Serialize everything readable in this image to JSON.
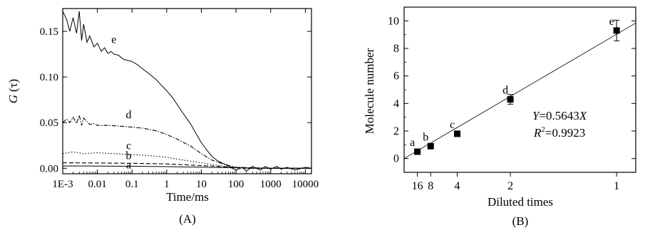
{
  "chart_data": [
    {
      "type": "line",
      "panel_label": "(A)",
      "xlabel": "Time/ms",
      "ylabel_main": "G",
      "ylabel_arg": "(τ)",
      "x_scale": "log",
      "xlim": [
        0.001,
        15000
      ],
      "ylim": [
        -0.006,
        0.175
      ],
      "x_ticks": [
        {
          "v": 0.001,
          "label": "1E-3"
        },
        {
          "v": 0.01,
          "label": "0.01"
        },
        {
          "v": 0.1,
          "label": "0.1"
        },
        {
          "v": 1,
          "label": "1"
        },
        {
          "v": 10,
          "label": "10"
        },
        {
          "v": 100,
          "label": "100"
        },
        {
          "v": 1000,
          "label": "1000"
        },
        {
          "v": 10000,
          "label": "10000"
        }
      ],
      "y_ticks": [
        {
          "v": 0.0,
          "label": "0.00"
        },
        {
          "v": 0.05,
          "label": "0.05"
        },
        {
          "v": 0.1,
          "label": "0.10"
        },
        {
          "v": 0.15,
          "label": "0.15"
        }
      ],
      "series": [
        {
          "name": "e",
          "style": "solid",
          "label_at": [
            0.03,
            0.137
          ],
          "x": [
            0.001,
            0.0013,
            0.0016,
            0.002,
            0.0025,
            0.003,
            0.0035,
            0.004,
            0.005,
            0.006,
            0.008,
            0.01,
            0.013,
            0.016,
            0.02,
            0.025,
            0.03,
            0.04,
            0.05,
            0.06,
            0.08,
            0.1,
            0.15,
            0.2,
            0.3,
            0.5,
            0.7,
            1,
            1.5,
            2,
            3,
            5,
            7,
            10,
            15,
            20,
            30,
            50,
            70,
            100,
            150,
            200,
            300,
            500,
            700,
            1000,
            1500,
            2000,
            3000,
            5000,
            10000,
            15000
          ],
          "y": [
            0.172,
            0.163,
            0.15,
            0.165,
            0.148,
            0.172,
            0.14,
            0.158,
            0.138,
            0.145,
            0.133,
            0.137,
            0.128,
            0.132,
            0.126,
            0.128,
            0.125,
            0.124,
            0.121,
            0.119,
            0.118,
            0.117,
            0.113,
            0.109,
            0.104,
            0.097,
            0.091,
            0.085,
            0.077,
            0.07,
            0.06,
            0.048,
            0.038,
            0.028,
            0.019,
            0.013,
            0.008,
            0.004,
            0.001,
            -0.002,
            0.001,
            -0.003,
            0.002,
            -0.002,
            0.002,
            -0.001,
            0.002,
            -0.001,
            0.001,
            -0.002,
            0.001,
            0.0
          ]
        },
        {
          "name": "d",
          "style": "dashdot",
          "label_at": [
            0.08,
            0.055
          ],
          "x": [
            0.001,
            0.0013,
            0.0016,
            0.002,
            0.0025,
            0.003,
            0.0035,
            0.004,
            0.005,
            0.006,
            0.008,
            0.01,
            0.02,
            0.05,
            0.1,
            0.2,
            0.5,
            1,
            2,
            5,
            10,
            20,
            50,
            100,
            200,
            500,
            1000,
            10000,
            15000
          ],
          "y": [
            0.05,
            0.054,
            0.05,
            0.056,
            0.049,
            0.058,
            0.047,
            0.055,
            0.051,
            0.048,
            0.049,
            0.047,
            0.047,
            0.046,
            0.045,
            0.044,
            0.041,
            0.037,
            0.032,
            0.024,
            0.016,
            0.009,
            0.004,
            0.001,
            0.0,
            0.0,
            0.0,
            0.0,
            0.0
          ]
        },
        {
          "name": "c",
          "style": "dotted",
          "label_at": [
            0.08,
            0.021
          ],
          "x": [
            0.001,
            0.002,
            0.004,
            0.01,
            0.03,
            0.1,
            0.3,
            1,
            3,
            10,
            30,
            100,
            300,
            1000,
            15000
          ],
          "y": [
            0.016,
            0.018,
            0.016,
            0.017,
            0.016,
            0.015,
            0.014,
            0.012,
            0.009,
            0.006,
            0.003,
            0.001,
            0.0,
            0.0,
            0.0
          ]
        },
        {
          "name": "b",
          "style": "dashed",
          "label_at": [
            0.08,
            0.01
          ],
          "x": [
            0.001,
            0.01,
            0.1,
            1,
            10,
            100,
            1000,
            15000
          ],
          "y": [
            0.006,
            0.0058,
            0.0055,
            0.0048,
            0.003,
            0.001,
            0.0,
            0.0
          ]
        },
        {
          "name": "a",
          "style": "solid",
          "label_at": [
            0.08,
            0.0
          ],
          "x": [
            0.001,
            0.01,
            0.1,
            1,
            10,
            100,
            1000,
            15000
          ],
          "y": [
            0.0025,
            0.0024,
            0.0022,
            0.0018,
            0.0012,
            0.0004,
            0.0,
            0.0
          ]
        }
      ]
    },
    {
      "type": "scatter",
      "panel_label": "(B)",
      "xlabel": "Diluted times",
      "ylabel": "Molecule number",
      "x_scale": "reciprocal",
      "xlim_fraction": [
        0.0,
        1.09
      ],
      "ylim": [
        -1,
        11
      ],
      "x_ticks": [
        {
          "v": 16,
          "label": "16"
        },
        {
          "v": 8,
          "label": "8"
        },
        {
          "v": 4,
          "label": "4"
        },
        {
          "v": 2,
          "label": "2"
        },
        {
          "v": 1,
          "label": "1"
        }
      ],
      "y_ticks": [
        {
          "v": 0,
          "label": "0"
        },
        {
          "v": 2,
          "label": "2"
        },
        {
          "v": 4,
          "label": "4"
        },
        {
          "v": 6,
          "label": "6"
        },
        {
          "v": 8,
          "label": "8"
        },
        {
          "v": 10,
          "label": "10"
        }
      ],
      "points": [
        {
          "label": "a",
          "x": 16,
          "y": 0.5,
          "err": 0.0
        },
        {
          "label": "b",
          "x": 8,
          "y": 0.9,
          "err": 0.0
        },
        {
          "label": "c",
          "x": 4,
          "y": 1.8,
          "err": 0.0
        },
        {
          "label": "d",
          "x": 2,
          "y": 4.3,
          "err": 0.35
        },
        {
          "label": "e",
          "x": 1,
          "y": 9.3,
          "err": 0.75
        }
      ],
      "fit": {
        "slope": 0.5643,
        "x_range_fraction": [
          0.0,
          1.09
        ]
      },
      "annotation": {
        "eq_var_y": "Y",
        "eq_rest": "=0.5643",
        "eq_var_x": "X",
        "r_symbol": "R",
        "r_sup": "2",
        "r_value": "=0.9923"
      }
    }
  ]
}
